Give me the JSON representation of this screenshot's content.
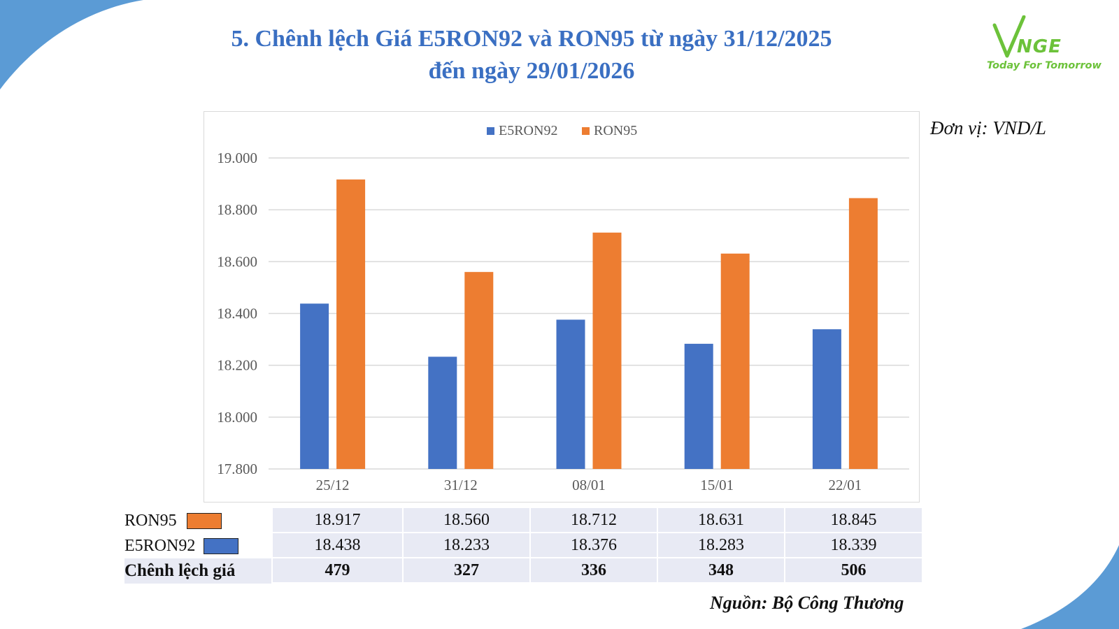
{
  "header": {
    "title_line1": "5. Chênh lệch Giá E5RON92 và RON95 từ ngày 31/12/2025",
    "title_line2": "đến ngày 29/01/2026"
  },
  "logo": {
    "wordmark": "NGE",
    "tagline": "Today For Tomorrow",
    "color": "#6cc23a"
  },
  "unit_label": "Đơn vị: VND/L",
  "chart_data": {
    "type": "bar",
    "categories": [
      "25/12",
      "31/12",
      "08/01",
      "15/01",
      "22/01"
    ],
    "series": [
      {
        "name": "E5RON92",
        "color": "#4472c4",
        "values": [
          18438,
          18233,
          18376,
          18283,
          18339
        ]
      },
      {
        "name": "RON95",
        "color": "#ed7d31",
        "values": [
          18917,
          18560,
          18712,
          18631,
          18845
        ]
      }
    ],
    "ylim": [
      17800,
      19000
    ],
    "yticks": [
      "17.800",
      "18.000",
      "18.200",
      "18.400",
      "18.600",
      "18.800",
      "19.000"
    ],
    "legend_position": "top-center",
    "grid": true
  },
  "table": {
    "rows": [
      {
        "label": "RON95",
        "swatch_color": "#ed7d31",
        "values": [
          "18.917",
          "18.560",
          "18.712",
          "18.631",
          "18.845"
        ]
      },
      {
        "label": "E5RON92",
        "swatch_color": "#4472c4",
        "values": [
          "18.438",
          "18.233",
          "18.376",
          "18.283",
          "18.339"
        ]
      },
      {
        "label": "Chênh lệch giá",
        "values": [
          "479",
          "327",
          "336",
          "348",
          "506"
        ]
      }
    ]
  },
  "source": "Nguồn: Bộ Công Thương",
  "colors": {
    "title": "#3a6fc2",
    "corner_accent": "#5b9bd5",
    "table_fill": "#e8eaf4"
  }
}
